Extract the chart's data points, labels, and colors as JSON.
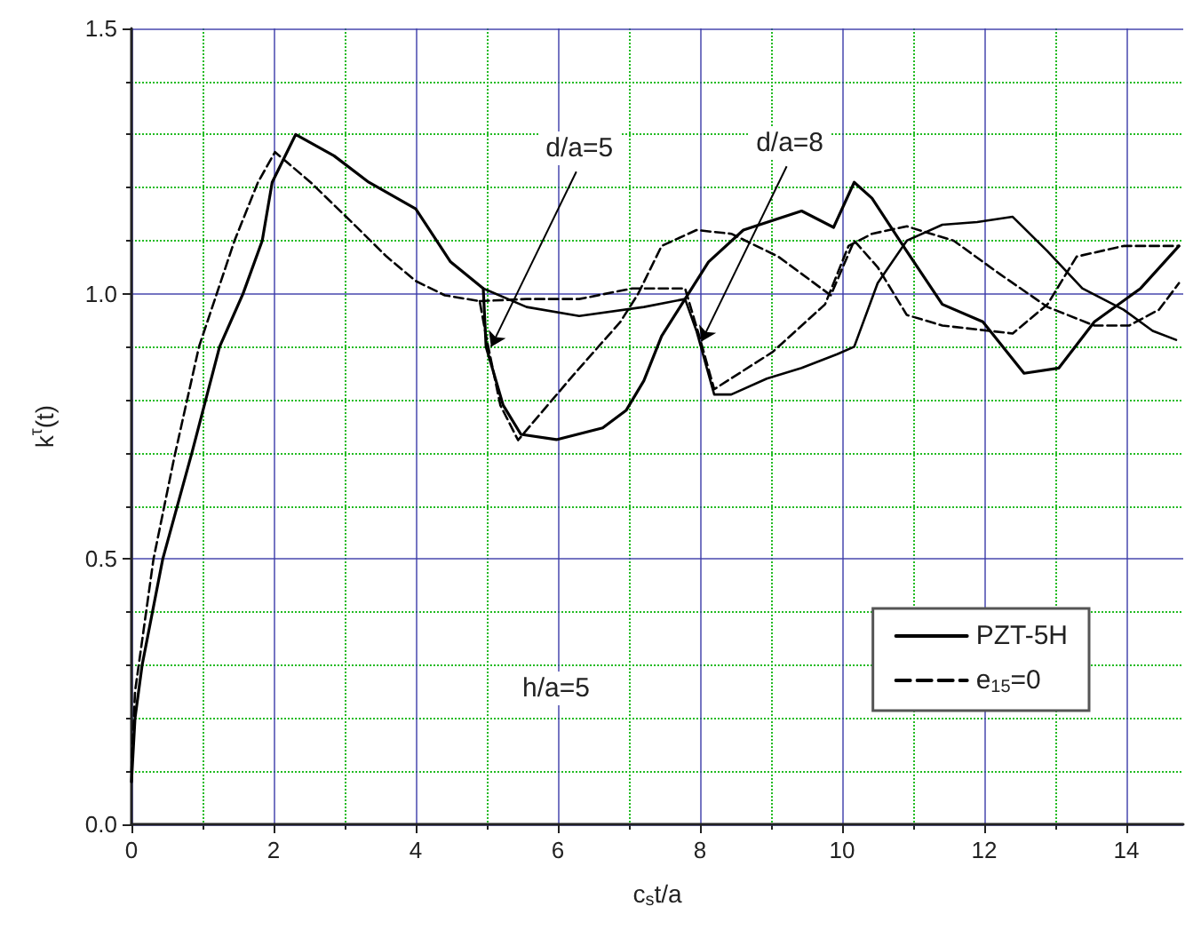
{
  "chart_data": {
    "type": "line",
    "xlabel": "c$_{s}$t/a",
    "ylabel": "k$^{τ}$(t)",
    "xlim": [
      0,
      14.8
    ],
    "ylim": [
      0,
      1.5
    ],
    "xticks": [
      0,
      {
        "value": 1,
        "label": null
      },
      2,
      {
        "value": 3,
        "label": null
      },
      4,
      {
        "value": 5,
        "label": null
      },
      6,
      {
        "value": 7,
        "label": null
      },
      8,
      {
        "value": 9,
        "label": null
      },
      10,
      {
        "value": 11,
        "label": null
      },
      12,
      {
        "value": 13,
        "label": null
      },
      14
    ],
    "yticks": [
      {
        "value": 0,
        "label": "0.0"
      },
      {
        "value": 0.1,
        "label": null
      },
      {
        "value": 0.2,
        "label": null
      },
      {
        "value": 0.3,
        "label": null
      },
      {
        "value": 0.4,
        "label": null
      },
      {
        "value": 0.5,
        "label": "0.5"
      },
      {
        "value": 0.6,
        "label": null
      },
      {
        "value": 0.7,
        "label": null
      },
      {
        "value": 0.8,
        "label": null
      },
      {
        "value": 0.9,
        "label": null
      },
      {
        "value": 1,
        "label": "1.0"
      },
      {
        "value": 1.1,
        "label": null
      },
      {
        "value": 1.2,
        "label": null
      },
      {
        "value": 1.3,
        "label": null
      },
      {
        "value": 1.4,
        "label": null
      },
      {
        "value": 1.5,
        "label": "1.5"
      }
    ],
    "grid": true,
    "legend": "bottom right",
    "marker": "none",
    "annotations": [
      {
        "text": "d/a=5",
        "x": 5.06,
        "y": 0.9
      },
      {
        "text": "d/a=8",
        "x": 8.02,
        "y": 0.91
      },
      "h/a=5"
    ],
    "series": [
      {
        "name": "PZT-5H",
        "color": "#000000",
        "line_style": "solid",
        "x": [
          0,
          0.05,
          0.15,
          0.44,
          0.85,
          1.24,
          1.57,
          1.84,
          1.98,
          2.31,
          2.85,
          3.34,
          4.0,
          4.49,
          4.95,
          4.99,
          5.23,
          5.48,
          5.98,
          6.63,
          6.96,
          7.21,
          7.46,
          7.79,
          8.12,
          8.61,
          9.43,
          9.88,
          10.17,
          10.42,
          10.91,
          11.41,
          11.98,
          12.56,
          13.05,
          13.55,
          14.2,
          14.74
        ],
        "values": [
          0.08,
          0.2,
          0.3,
          0.5,
          0.7,
          0.9,
          1.0,
          1.1,
          1.21,
          1.3,
          1.26,
          1.21,
          1.16,
          1.06,
          1.01,
          0.9,
          0.79,
          0.735,
          0.725,
          0.747,
          0.78,
          0.836,
          0.92,
          0.99,
          1.06,
          1.12,
          1.156,
          1.125,
          1.21,
          1.18,
          1.08,
          0.98,
          0.947,
          0.85,
          0.86,
          0.947,
          1.01,
          1.09
        ]
      },
      {
        "color": "#000000",
        "line_style": "solid",
        "x": [
          4.95,
          5.56,
          6.3,
          7.21,
          7.79,
          7.95,
          8.2,
          8.44,
          8.94,
          9.43,
          9.93,
          10.17,
          10.5,
          10.91,
          11.41,
          11.9,
          12.4,
          12.89,
          13.38,
          13.96,
          14.37,
          14.7
        ],
        "values": [
          1.01,
          0.975,
          0.958,
          0.975,
          0.99,
          0.93,
          0.81,
          0.81,
          0.84,
          0.86,
          0.886,
          0.9,
          1.02,
          1.1,
          1.13,
          1.135,
          1.145,
          1.08,
          1.01,
          0.97,
          0.93,
          0.913
        ]
      },
      {
        "name": "e$_{15}$=0",
        "color": "#000000",
        "line_style": "dashed",
        "x": [
          0,
          0.05,
          0.31,
          0.6,
          0.95,
          1.45,
          1.78,
          2.02,
          2.52,
          3.09,
          3.59,
          4.0,
          4.41,
          4.9,
          4.99,
          5.19,
          5.44,
          5.73,
          6.22,
          6.88,
          7.13,
          7.46,
          7.95,
          8.44,
          9.1,
          9.84,
          10.17,
          10.5,
          10.91,
          11.41,
          12.07,
          12.4,
          12.89,
          13.3,
          13.96,
          14.74
        ],
        "values": [
          0.1,
          0.25,
          0.5,
          0.69,
          0.9,
          1.1,
          1.21,
          1.267,
          1.21,
          1.136,
          1.07,
          1.024,
          0.997,
          0.986,
          0.92,
          0.79,
          0.724,
          0.77,
          0.847,
          0.947,
          1.0,
          1.09,
          1.12,
          1.113,
          1.07,
          0.997,
          1.1,
          1.05,
          0.96,
          0.94,
          0.93,
          0.925,
          0.98,
          1.07,
          1.09,
          1.09
        ]
      },
      {
        "color": "#000000",
        "line_style": "dashed",
        "x": [
          4.9,
          5.56,
          6.3,
          7.05,
          7.46,
          7.79,
          7.99,
          8.2,
          9.02,
          9.76,
          10.09,
          10.42,
          10.91,
          11.57,
          12.23,
          12.89,
          13.55,
          14.04,
          14.46,
          14.74
        ],
        "values": [
          0.986,
          0.99,
          0.99,
          1.01,
          1.01,
          1.01,
          0.92,
          0.82,
          0.89,
          0.98,
          1.09,
          1.113,
          1.127,
          1.1,
          1.036,
          0.975,
          0.94,
          0.94,
          0.97,
          1.02
        ]
      }
    ]
  }
}
